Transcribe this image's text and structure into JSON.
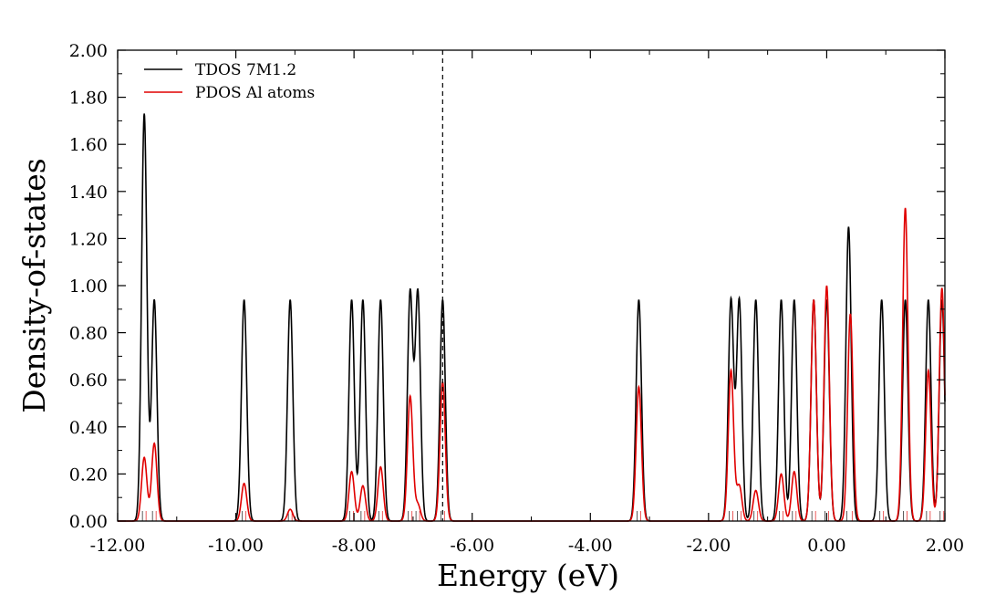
{
  "chart_data": {
    "type": "line",
    "title": "",
    "xlabel": "Energy (eV)",
    "ylabel": "Density-of-states",
    "xlim": [
      -12.0,
      2.0
    ],
    "ylim": [
      0.0,
      2.0
    ],
    "x_ticks": [
      -12,
      -10,
      -8,
      -6,
      -4,
      -2,
      0,
      2
    ],
    "x_tick_labels": [
      "-12.00",
      "-10.00",
      "-8.00",
      "-6.00",
      "-4.00",
      "-2.00",
      "0.00",
      "2.00"
    ],
    "y_ticks": [
      0,
      0.2,
      0.4,
      0.6,
      0.8,
      1.0,
      1.2,
      1.4,
      1.6,
      1.8,
      2.0
    ],
    "y_tick_labels": [
      "0.00",
      "0.20",
      "0.40",
      "0.60",
      "0.80",
      "1.00",
      "1.20",
      "1.40",
      "1.60",
      "1.80",
      "2.00"
    ],
    "grid": false,
    "legend_position": "top-left",
    "fermi_level": -6.5,
    "series": [
      {
        "name": "TDOS 7M1.2",
        "color": "#000000",
        "peaks": [
          {
            "x": -11.55,
            "y": 1.73
          },
          {
            "x": -11.38,
            "y": 0.94
          },
          {
            "x": -9.86,
            "y": 0.94
          },
          {
            "x": -9.08,
            "y": 0.94
          },
          {
            "x": -8.04,
            "y": 0.94
          },
          {
            "x": -7.85,
            "y": 0.94
          },
          {
            "x": -7.55,
            "y": 0.94
          },
          {
            "x": -7.05,
            "y": 0.97
          },
          {
            "x": -6.92,
            "y": 0.97
          },
          {
            "x": -6.5,
            "y": 0.94
          },
          {
            "x": -3.18,
            "y": 0.94
          },
          {
            "x": -1.62,
            "y": 0.94
          },
          {
            "x": -1.48,
            "y": 0.94
          },
          {
            "x": -1.2,
            "y": 0.94
          },
          {
            "x": -0.77,
            "y": 0.94
          },
          {
            "x": -0.55,
            "y": 0.94
          },
          {
            "x": -0.22,
            "y": 0.94
          },
          {
            "x": 0.0,
            "y": 0.94
          },
          {
            "x": 0.37,
            "y": 1.25
          },
          {
            "x": 0.93,
            "y": 0.94
          },
          {
            "x": 1.33,
            "y": 0.94
          },
          {
            "x": 1.72,
            "y": 0.94
          },
          {
            "x": 1.95,
            "y": 0.94
          }
        ]
      },
      {
        "name": "PDOS Al atoms",
        "color": "#e00000",
        "peaks": [
          {
            "x": -11.55,
            "y": 0.27
          },
          {
            "x": -11.38,
            "y": 0.33
          },
          {
            "x": -9.86,
            "y": 0.16
          },
          {
            "x": -9.08,
            "y": 0.05
          },
          {
            "x": -8.04,
            "y": 0.21
          },
          {
            "x": -7.85,
            "y": 0.15
          },
          {
            "x": -7.55,
            "y": 0.23
          },
          {
            "x": -7.05,
            "y": 0.53
          },
          {
            "x": -6.92,
            "y": 0.07
          },
          {
            "x": -6.5,
            "y": 0.59
          },
          {
            "x": -3.18,
            "y": 0.57
          },
          {
            "x": -1.62,
            "y": 0.64
          },
          {
            "x": -1.48,
            "y": 0.15
          },
          {
            "x": -1.2,
            "y": 0.13
          },
          {
            "x": -0.77,
            "y": 0.2
          },
          {
            "x": -0.55,
            "y": 0.21
          },
          {
            "x": -0.22,
            "y": 0.94
          },
          {
            "x": 0.0,
            "y": 1.0
          },
          {
            "x": 0.4,
            "y": 0.88
          },
          {
            "x": 0.93,
            "y": 0.0
          },
          {
            "x": 1.33,
            "y": 1.33
          },
          {
            "x": 1.72,
            "y": 0.64
          },
          {
            "x": 1.95,
            "y": 0.99
          }
        ]
      }
    ]
  }
}
